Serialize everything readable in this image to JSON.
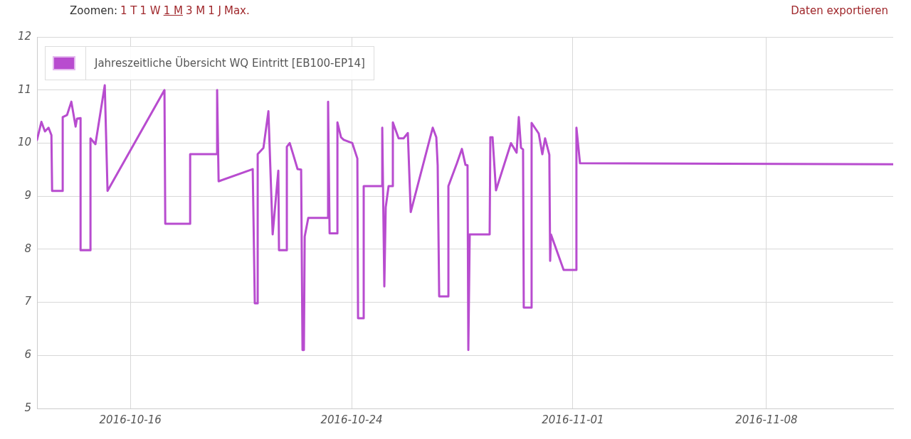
{
  "chart_data": {
    "type": "line",
    "annotations": [
      "Zoomen:",
      "1 T",
      "1 W",
      "1 M",
      "3 M",
      "1 J",
      "Max.",
      "Daten exportieren"
    ],
    "x": [
      "2016-10-12T15:00",
      "2016-10-12T18:48",
      "2016-10-12T21:54",
      "2016-10-13T01:00",
      "2016-10-13T03:30",
      "2016-10-13T04:06",
      "2016-10-13T13:18",
      "2016-10-13T13:18",
      "2016-10-13T17:06",
      "2016-10-13T20:48",
      "2016-10-14T00:30",
      "2016-10-14T01:42",
      "2016-10-14T04:48",
      "2016-10-14T04:48",
      "2016-10-14T13:24",
      "2016-10-14T13:24",
      "2016-10-14T17:42",
      "2016-10-15T01:48",
      "2016-10-15T04:12",
      "2016-10-17T05:36",
      "2016-10-17T06:18",
      "2016-10-18T03:54",
      "2016-10-18T03:54",
      "2016-10-19T03:18",
      "2016-10-19T03:18",
      "2016-10-19T04:36",
      "2016-10-20T10:12",
      "2016-10-20T12:00",
      "2016-10-20T14:30",
      "2016-10-20T14:30",
      "2016-10-20T19:30",
      "2016-10-20T23:48",
      "2016-10-21T03:30",
      "2016-10-21T08:24",
      "2016-10-21T09:00",
      "2016-10-21T15:48",
      "2016-10-21T15:48",
      "2016-10-21T18:18",
      "2016-10-21T21:24",
      "2016-10-22T01:06",
      "2016-10-22T04:12",
      "2016-10-22T05:24",
      "2016-10-22T06:36",
      "2016-10-22T07:18",
      "2016-10-22T10:24",
      "2016-10-23T03:00",
      "2016-10-23T03:36",
      "2016-10-23T04:54",
      "2016-10-23T11:42",
      "2016-10-23T11:42",
      "2016-10-23T14:48",
      "2016-10-23T17:12",
      "2016-10-24T00:36",
      "2016-10-24T05:00",
      "2016-10-24T05:36",
      "2016-10-24T10:30",
      "2016-10-24T10:30",
      "2016-10-25T02:36",
      "2016-10-25T02:36",
      "2016-10-25T04:24",
      "2016-10-25T05:36",
      "2016-10-25T08:06",
      "2016-10-25T11:48",
      "2016-10-25T11:48",
      "2016-10-25T16:48",
      "2016-10-25T21:06",
      "2016-10-26T00:48",
      "2016-10-26T03:18",
      "2016-10-26T22:24",
      "2016-10-27T01:30",
      "2016-10-27T02:42",
      "2016-10-27T04:00",
      "2016-10-27T12:00",
      "2016-10-27T12:00",
      "2016-10-27T19:24",
      "2016-10-27T23:42",
      "2016-10-28T02:48",
      "2016-10-28T04:36",
      "2016-10-28T05:18",
      "2016-10-28T06:30",
      "2016-10-28T23:48",
      "2016-10-29T00:24",
      "2016-10-29T02:18",
      "2016-10-29T05:18",
      "2016-10-29T18:18",
      "2016-10-29T23:12",
      "2016-10-30T01:06",
      "2016-10-30T03:00",
      "2016-10-30T04:48",
      "2016-10-30T05:24",
      "2016-10-30T12:12",
      "2016-10-30T12:12",
      "2016-10-30T18:24",
      "2016-10-30T21:30",
      "2016-10-30T23:54",
      "2016-10-31T03:36",
      "2016-10-31T04:18",
      "2016-10-31T05:00",
      "2016-10-31T16:00",
      "2016-11-01T03:06",
      "2016-11-01T03:06",
      "2016-11-01T06:12",
      "2016-11-12T13:48"
    ],
    "series": [
      {
        "name": "Jahreszeitliche Übersicht WQ Eintritt [EB100-EP14]",
        "color": "#b84ccf",
        "values": [
          10.06,
          10.4,
          10.22,
          10.29,
          10.15,
          9.1,
          9.1,
          10.49,
          10.53,
          10.78,
          10.31,
          10.46,
          10.47,
          7.98,
          7.98,
          10.09,
          9.98,
          11.09,
          9.1,
          11.0,
          8.48,
          8.48,
          9.79,
          9.79,
          11.0,
          9.28,
          9.51,
          6.98,
          6.98,
          9.79,
          9.91,
          10.6,
          8.28,
          9.48,
          7.98,
          7.98,
          9.93,
          10.0,
          9.78,
          9.51,
          9.5,
          6.1,
          6.1,
          8.24,
          8.59,
          8.59,
          10.78,
          8.3,
          8.3,
          10.39,
          10.11,
          10.06,
          10.0,
          9.71,
          6.7,
          6.7,
          9.19,
          9.19,
          10.29,
          7.3,
          8.79,
          9.19,
          9.19,
          10.39,
          10.09,
          10.09,
          10.19,
          8.7,
          10.29,
          10.11,
          9.58,
          7.11,
          7.11,
          9.19,
          9.62,
          9.89,
          9.59,
          9.58,
          6.1,
          8.28,
          8.28,
          10.11,
          10.11,
          9.11,
          10.0,
          9.82,
          10.49,
          9.91,
          9.88,
          6.9,
          6.9,
          10.38,
          10.18,
          9.79,
          10.09,
          9.78,
          7.78,
          8.28,
          7.61,
          7.61,
          10.29,
          9.62,
          9.6
        ]
      }
    ],
    "xlim": [
      "2016-10-12T15:00",
      "2016-11-12T14:00"
    ],
    "xticks": [
      "2016-10-16",
      "2016-10-24",
      "2016-11-01",
      "2016-11-08"
    ],
    "ylim": [
      5,
      12
    ],
    "yticks": [
      5,
      6,
      7,
      8,
      9,
      10,
      11,
      12
    ],
    "grid": true,
    "legend": "top left",
    "marker": "none",
    "line_style": "solid"
  }
}
